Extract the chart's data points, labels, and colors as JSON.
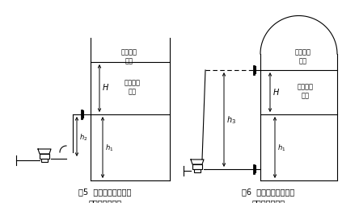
{
  "fig5_cap1": "图5  双法兰差压变送器",
  "fig5_cap2": "安装方式应用五",
  "fig6_cap1": "图6  双法兰差压变送器",
  "fig6_cap2": "安装方式应用六",
  "bg_color": "#ffffff",
  "lc": "#000000"
}
